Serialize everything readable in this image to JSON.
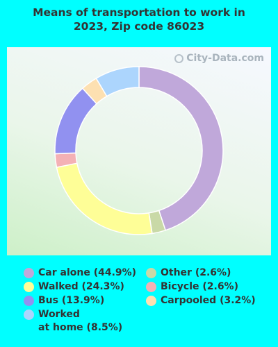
{
  "title_line1": "Means of transportation to work in",
  "title_line2": "2023, Zip code 86023",
  "watermark": "City-Data.com",
  "chart_data": {
    "type": "pie",
    "donut": true,
    "slices": [
      {
        "label": "Car alone (44.9%)",
        "value": 44.9,
        "color": "#c0a8da"
      },
      {
        "label": "Other (2.6%)",
        "value": 2.6,
        "color": "#c9d9a7"
      },
      {
        "label": "Walked (24.3%)",
        "value": 24.3,
        "color": "#fefe97"
      },
      {
        "label": "Bicycle (2.6%)",
        "value": 2.6,
        "color": "#f4b1b5"
      },
      {
        "label": "Bus (13.9%)",
        "value": 13.9,
        "color": "#9191f0"
      },
      {
        "label": "Carpooled (3.2%)",
        "value": 3.2,
        "color": "#fde0b1"
      },
      {
        "label": "Worked at home (8.5%)",
        "value": 8.5,
        "color": "#acd5fd"
      }
    ]
  },
  "legend": [
    {
      "label": "Car alone (44.9%)",
      "color": "#c0a8da"
    },
    {
      "label": "Walked (24.3%)",
      "color": "#fefe97"
    },
    {
      "label": "Bus (13.9%)",
      "color": "#9191f0"
    },
    {
      "label": "Worked",
      "label2": "at home (8.5%)",
      "color": "#acd5fd"
    },
    {
      "label": "Other (2.6%)",
      "color": "#c9d9a7"
    },
    {
      "label": "Bicycle (2.6%)",
      "color": "#f4b1b5"
    },
    {
      "label": "Carpooled (3.2%)",
      "color": "#fde0b1"
    }
  ]
}
